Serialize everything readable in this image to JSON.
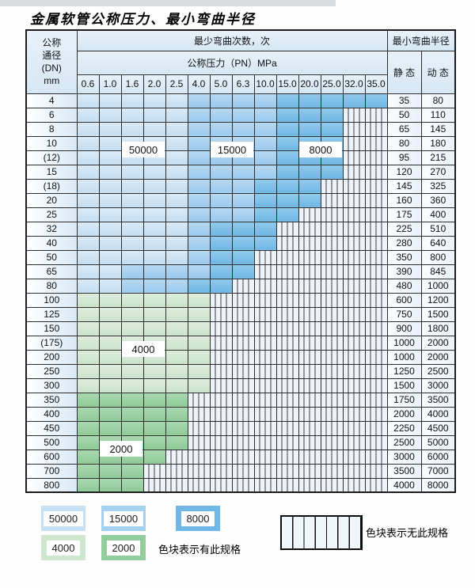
{
  "title": "金属软管公称压力、最小弯曲半径",
  "table": {
    "header": {
      "dn_label_lines": [
        "公称",
        "通径",
        "(DN)",
        "mm"
      ],
      "bend_cycles_label": "最少弯曲次数，次",
      "pressure_label": "公称压力（PN）MPa",
      "radius_label": "最小弯曲半径",
      "static_label": "静 态",
      "dynamic_label": "动 态",
      "pressure_columns": [
        "0.6",
        "1.0",
        "1.6",
        "2.0",
        "2.5",
        "4.0",
        "5.0",
        "6.3",
        "10.0",
        "15.0",
        "20.0",
        "25.0",
        "32.0",
        "35.0"
      ]
    },
    "color_codes": {
      "a": {
        "cycles": "50000",
        "color": "#cfe4f5"
      },
      "b": {
        "cycles": "15000",
        "color": "#a9d2f0"
      },
      "c": {
        "cycles": "8000",
        "color": "#81c1e9"
      },
      "d": {
        "cycles": "4000",
        "color": "#d4e8d3"
      },
      "e": {
        "cycles": "2000",
        "color": "#9cd2a4"
      },
      "x": {
        "cycles": "",
        "color": "hatched-no-spec"
      }
    },
    "rows": [
      {
        "dn": "4",
        "cells": "aaaaabbbbccccc",
        "static": "35",
        "dynamic": "80"
      },
      {
        "dn": "6",
        "cells": "aaaaabbbbcccxx",
        "static": "50",
        "dynamic": "110"
      },
      {
        "dn": "8",
        "cells": "aaaaabbbbcccxx",
        "static": "65",
        "dynamic": "145"
      },
      {
        "dn": "10",
        "cells": "aaaaabbbbcccxx",
        "static": "80",
        "dynamic": "180"
      },
      {
        "dn": "(12)",
        "cells": "aaaaabbbbcccxx",
        "static": "95",
        "dynamic": "215"
      },
      {
        "dn": "15",
        "cells": "aaaaabbbbcccxx",
        "static": "120",
        "dynamic": "270"
      },
      {
        "dn": "(18)",
        "cells": "aaaaabbbcccxxx",
        "static": "145",
        "dynamic": "325"
      },
      {
        "dn": "20",
        "cells": "aaaaabbbcccxxx",
        "static": "160",
        "dynamic": "360"
      },
      {
        "dn": "25",
        "cells": "aaaaabbbccxxxx",
        "static": "175",
        "dynamic": "400"
      },
      {
        "dn": "32",
        "cells": "aaaaabcccxxxxx",
        "static": "225",
        "dynamic": "510"
      },
      {
        "dn": "40",
        "cells": "aaaaabcccxxxxx",
        "static": "280",
        "dynamic": "640"
      },
      {
        "dn": "50",
        "cells": "aaaaabccxxxxxx",
        "static": "350",
        "dynamic": "800"
      },
      {
        "dn": "65",
        "cells": "aabbbbccxxxxxx",
        "static": "390",
        "dynamic": "845"
      },
      {
        "dn": "80",
        "cells": "aabbbccxxxxxxx",
        "static": "480",
        "dynamic": "1000"
      },
      {
        "dn": "100",
        "cells": "ddddddxxxxxxxx",
        "static": "600",
        "dynamic": "1200"
      },
      {
        "dn": "125",
        "cells": "ddddddxxxxxxxx",
        "static": "750",
        "dynamic": "1500"
      },
      {
        "dn": "150",
        "cells": "ddddddxxxxxxxx",
        "static": "900",
        "dynamic": "1800"
      },
      {
        "dn": "(175)",
        "cells": "ddddddxxxxxxxx",
        "static": "1000",
        "dynamic": "2000"
      },
      {
        "dn": "200",
        "cells": "ddddddxxxxxxxx",
        "static": "1000",
        "dynamic": "2000"
      },
      {
        "dn": "250",
        "cells": "ddddddxxxxxxxx",
        "static": "1250",
        "dynamic": "2500"
      },
      {
        "dn": "300",
        "cells": "ddddddxxxxxxxx",
        "static": "1500",
        "dynamic": "3000"
      },
      {
        "dn": "350",
        "cells": "eeeeexxxxxxxxx",
        "static": "1750",
        "dynamic": "3500"
      },
      {
        "dn": "400",
        "cells": "eeeeexxxxxxxxx",
        "static": "2000",
        "dynamic": "4000"
      },
      {
        "dn": "450",
        "cells": "eeeeexxxxxxxxx",
        "static": "2250",
        "dynamic": "4500"
      },
      {
        "dn": "500",
        "cells": "eeeeexxxxxxxxx",
        "static": "2500",
        "dynamic": "5000"
      },
      {
        "dn": "600",
        "cells": "eeeexxxxxxxxxx",
        "static": "3000",
        "dynamic": "6000"
      },
      {
        "dn": "700",
        "cells": "eeexxxxxxxxxxx",
        "static": "3500",
        "dynamic": "7000"
      },
      {
        "dn": "800",
        "cells": "eeexxxxxxxxxxx",
        "static": "4000",
        "dynamic": "8000"
      }
    ],
    "overlay_labels": [
      {
        "text": "50000",
        "col_start": 2,
        "row_boundary": 4
      },
      {
        "text": "15000",
        "col_start": 6,
        "row_boundary": 4
      },
      {
        "text": "8000",
        "col_start": 10,
        "row_boundary": 4
      },
      {
        "text": "4000",
        "col_start": 2,
        "row_boundary": 18
      },
      {
        "text": "2000",
        "col_start": 1,
        "row_boundary": 25
      }
    ]
  },
  "legend": {
    "swatches": [
      {
        "value": "50000",
        "code": "a"
      },
      {
        "value": "15000",
        "code": "b"
      },
      {
        "value": "8000",
        "code": "c"
      },
      {
        "value": "4000",
        "code": "d"
      },
      {
        "value": "2000",
        "code": "e"
      }
    ],
    "has_spec_text": "色块表示有此规格",
    "no_spec_text": "色块表示无此规格"
  }
}
